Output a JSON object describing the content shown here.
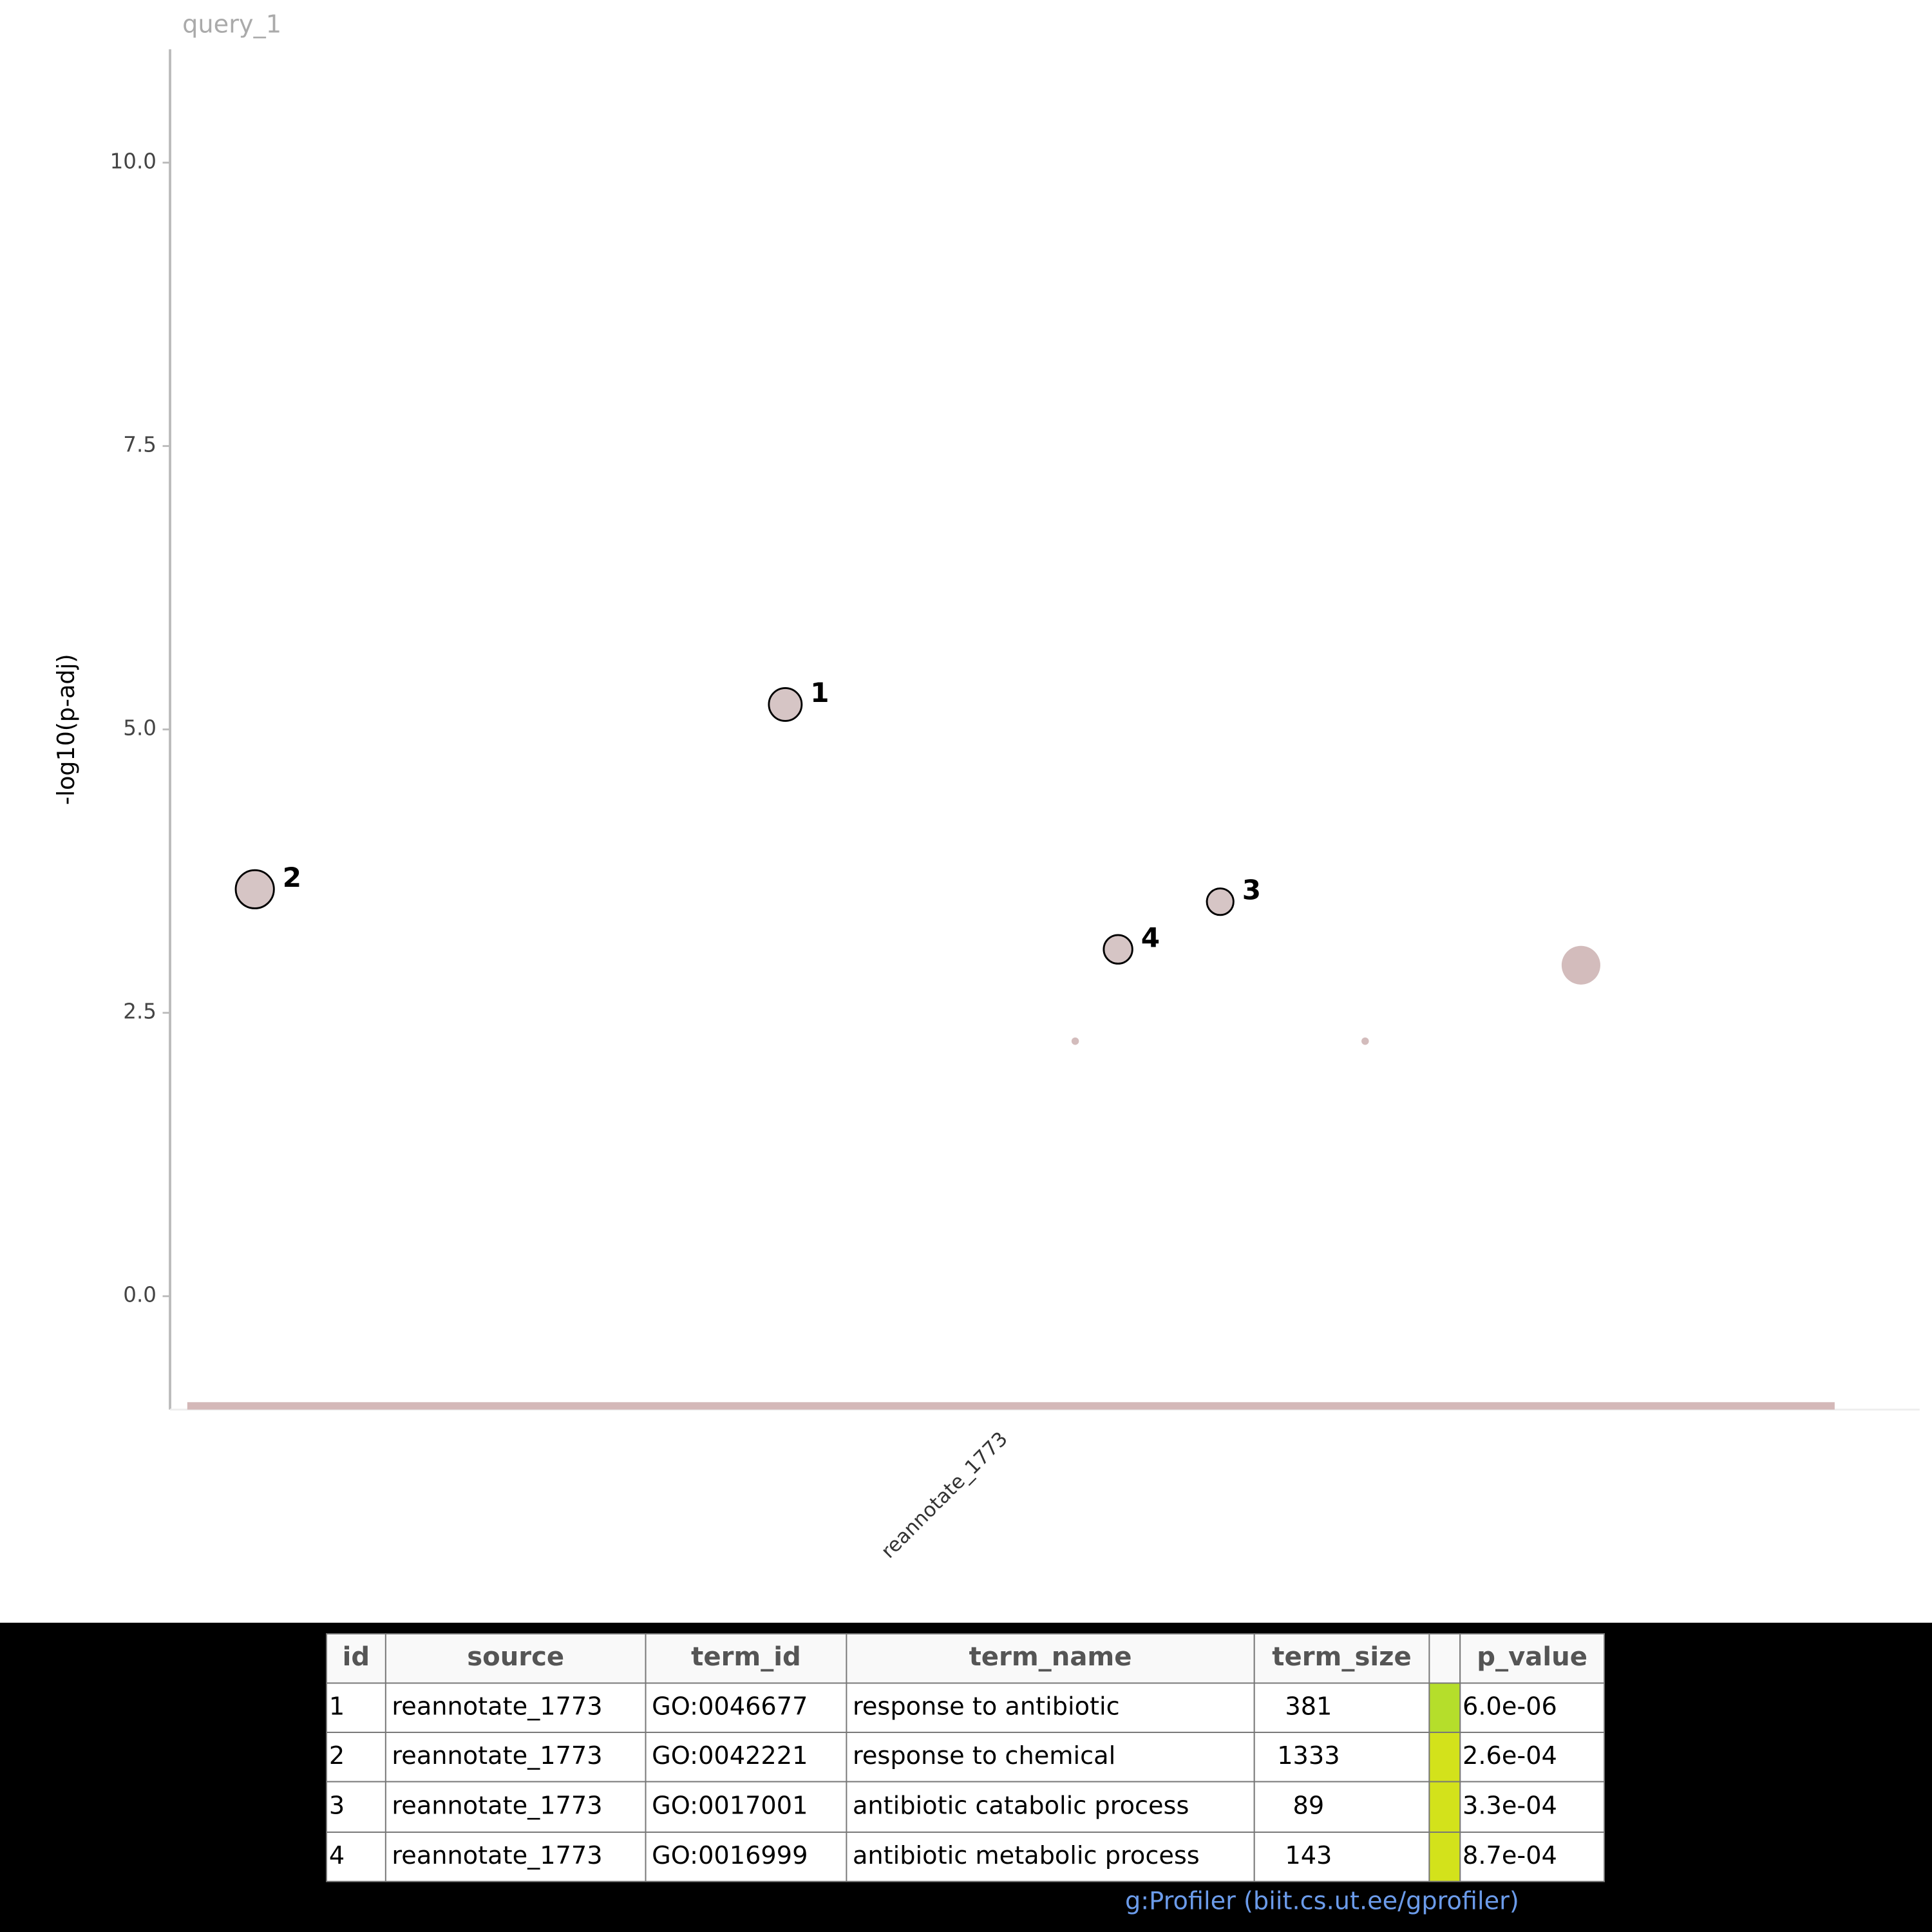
{
  "chart_data": {
    "type": "scatter",
    "title": "query_1",
    "y_label": "-log10(p-adj)",
    "categories": [
      "reannotate_1773"
    ],
    "band_color": "#d4b8b8",
    "xlim": [
      0,
      100
    ],
    "ylim": [
      -1,
      11
    ],
    "yticks": [
      {
        "value": 0,
        "label": "0.0"
      },
      2.5,
      {
        "value": 5,
        "label": "5.0"
      },
      7.5,
      {
        "value": 10,
        "label": "10.0"
      }
    ],
    "series": [
      {
        "color": "#d6c5c5",
        "outline": "#000000",
        "x": [
          36.3,
          4.1,
          62.7,
          56.5
        ],
        "y": [
          5.22,
          3.59,
          3.48,
          3.06
        ],
        "sizes": [
          381,
          1333,
          89,
          143
        ],
        "labels": [
          "1",
          "2",
          "3",
          "4"
        ]
      },
      {
        "color": "#d3bcbc",
        "x": [
          53.9,
          71.5,
          84.6
        ],
        "y": [
          2.25,
          2.25,
          2.92
        ],
        "sizes": [
          1,
          1,
          1500
        ]
      }
    ]
  },
  "table": {
    "columns": [
      "id",
      "source",
      "term_id",
      "term_name",
      "term_size",
      "p_value"
    ],
    "rows": [
      [
        "1",
        "reannotate_1773",
        "GO:0046677",
        "response to antibiotic",
        "381",
        "6.0e-06"
      ],
      [
        "2",
        "reannotate_1773",
        "GO:0042221",
        "response to chemical",
        "1333",
        "2.6e-04"
      ],
      [
        "3",
        "reannotate_1773",
        "GO:0017001",
        "antibiotic catabolic process",
        "89",
        "3.3e-04"
      ],
      [
        "4",
        "reannotate_1773",
        "GO:0016999",
        "antibiotic metabolic process",
        "143",
        "8.7e-04"
      ]
    ],
    "highlight_colors": [
      "#b5de2b",
      "#d3e21b",
      "#d3e21b",
      "#d3e21b"
    ]
  },
  "footer": "g:Profiler (biit.cs.ut.ee/gprofiler)"
}
